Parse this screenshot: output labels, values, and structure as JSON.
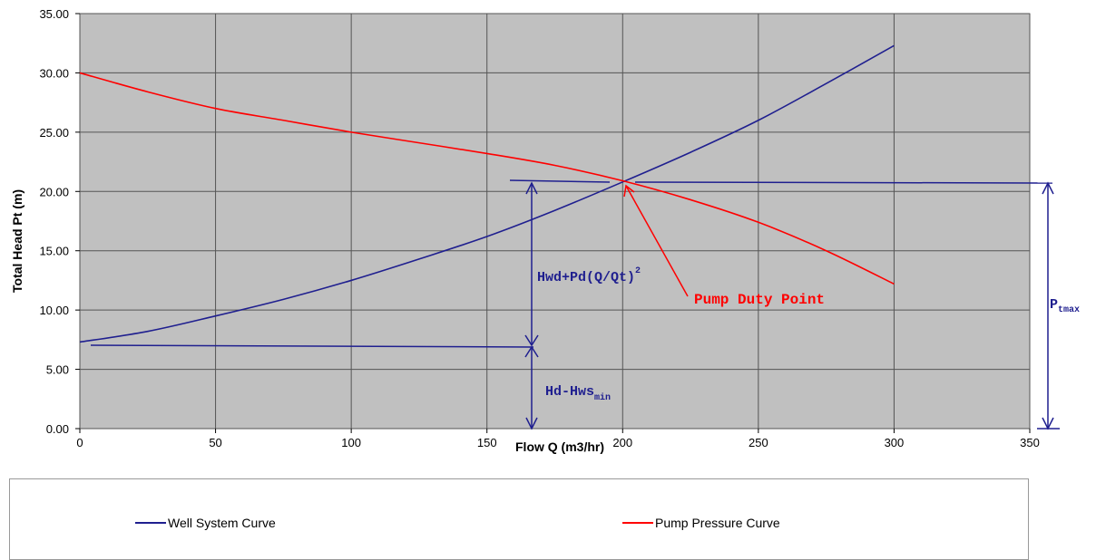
{
  "chart_data": {
    "type": "line",
    "xlabel": "Flow Q (m3/hr)",
    "ylabel": "Total Head Pt (m)",
    "xlim": [
      0,
      350
    ],
    "ylim": [
      0,
      35
    ],
    "x_ticks": [
      "0",
      "50",
      "100",
      "150",
      "200",
      "250",
      "300",
      "350"
    ],
    "y_ticks": [
      "0.00",
      "5.00",
      "10.00",
      "15.00",
      "20.00",
      "25.00",
      "30.00",
      "35.00"
    ],
    "grid": true,
    "plot_background": "#c0c0c0",
    "series": [
      {
        "name": "Well System Curve",
        "color": "#1f1f8f",
        "x": [
          0,
          25,
          50,
          75,
          100,
          125,
          150,
          175,
          200,
          225,
          250,
          275,
          300
        ],
        "y": [
          7.3,
          8.2,
          9.5,
          10.9,
          12.5,
          14.3,
          16.2,
          18.4,
          20.8,
          23.3,
          26.0,
          29.1,
          32.3
        ]
      },
      {
        "name": "Pump Pressure Curve",
        "color": "#ff0000",
        "x": [
          0,
          25,
          50,
          75,
          100,
          125,
          150,
          175,
          200,
          225,
          250,
          275,
          300
        ],
        "y": [
          30.0,
          28.4,
          27.0,
          26.0,
          25.0,
          24.1,
          23.2,
          22.2,
          20.9,
          19.3,
          17.4,
          15.0,
          12.2
        ]
      }
    ],
    "legend_position": "bottom",
    "annotations": {
      "hwd_label": "Hwd+Pd(Q/Qt)",
      "hwd_exp": "2",
      "duty_label": "Pump Duty Point",
      "hd_label": "Hd-Hws",
      "hd_sub": "min",
      "pt_label": "P",
      "pt_sub": "tmax"
    }
  }
}
